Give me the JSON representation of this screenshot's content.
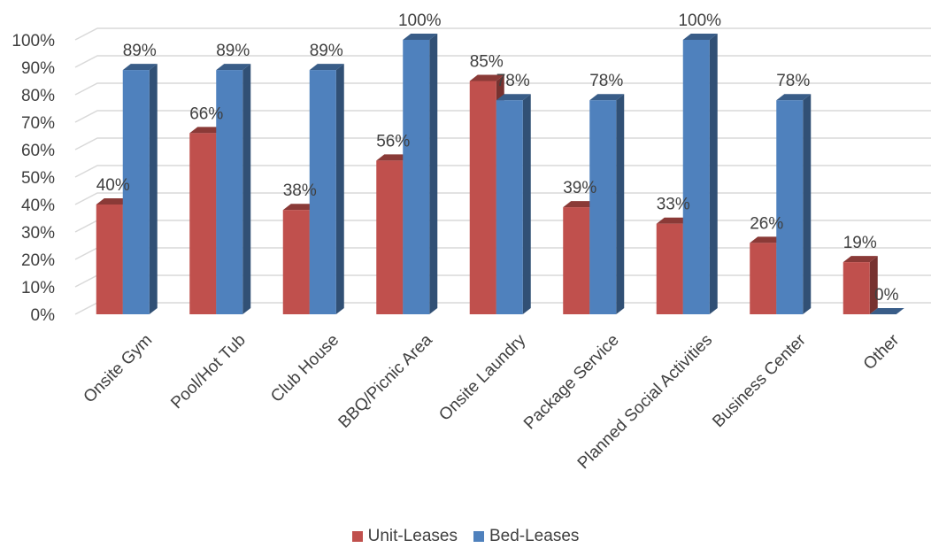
{
  "chart_data": {
    "type": "bar",
    "style": "3d-clustered-column",
    "categories": [
      "Onsite Gym",
      "Pool/Hot Tub",
      "Club House",
      "BBQ/Picnic Area",
      "Onsite Laundry",
      "Package Service",
      "Planned Social Activities",
      "Business Center",
      "Other"
    ],
    "series": [
      {
        "name": "Unit-Leases",
        "values": [
          40,
          66,
          38,
          56,
          85,
          39,
          33,
          26,
          19
        ],
        "labels": [
          "40%",
          "66%",
          "38%",
          "56%",
          "85%",
          "39%",
          "33%",
          "26%",
          "19%"
        ],
        "color": "#C0504D"
      },
      {
        "name": "Bed-Leases",
        "values": [
          89,
          89,
          89,
          100,
          78,
          78,
          100,
          78,
          0
        ],
        "labels": [
          "89%",
          "89%",
          "89%",
          "100%",
          "78%",
          "78%",
          "100%",
          "78%",
          "0%"
        ],
        "color": "#4F81BD"
      }
    ],
    "yticks": [
      "0%",
      "10%",
      "20%",
      "30%",
      "40%",
      "50%",
      "60%",
      "70%",
      "80%",
      "90%",
      "100%"
    ],
    "ylim": [
      0,
      100
    ],
    "grid": true,
    "legend": "bottom-center",
    "title": "",
    "xlabel": "",
    "ylabel": ""
  }
}
